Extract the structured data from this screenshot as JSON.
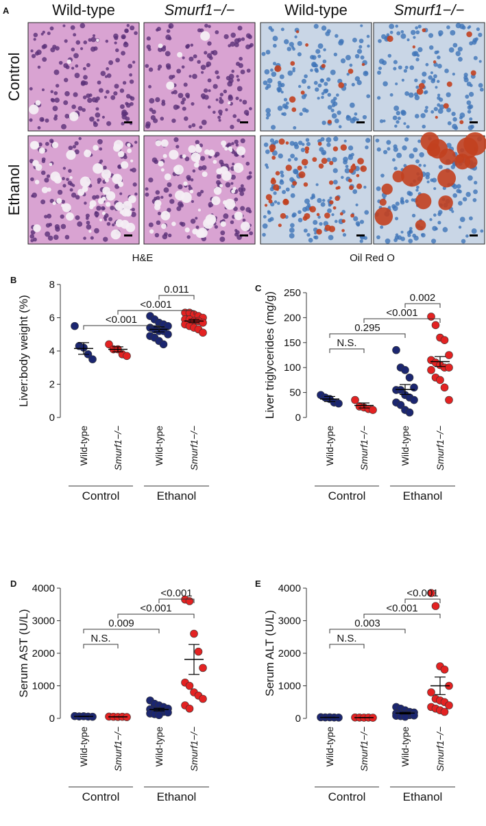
{
  "figure_a": {
    "letter": "A",
    "columns": [
      "Wild-type",
      "Smurf1−/−",
      "Wild-type",
      "Smurf1−/−"
    ],
    "rows": [
      "Control",
      "Ethanol"
    ],
    "stains": [
      "H&E",
      "Oil Red O"
    ]
  },
  "chart_data": [
    {
      "type": "scatter",
      "letter": "B",
      "ylabel": "Liver:body weight (%)",
      "categories": [
        "Wild-type",
        "Smurf1−/−",
        "Wild-type",
        "Smurf1−/−"
      ],
      "groups": [
        "Control",
        "Ethanol"
      ],
      "colors": [
        "#1b2670",
        "#e32222",
        "#1b2670",
        "#e32222"
      ],
      "points": [
        [
          5.5,
          4.3,
          4.2,
          3.8,
          3.5
        ],
        [
          4.4,
          4.1,
          4.1,
          3.8,
          3.7
        ],
        [
          6.1,
          5.9,
          5.7,
          5.6,
          5.5,
          5.4,
          5.3,
          5.2,
          5.2,
          5.0,
          4.9,
          4.8,
          4.6,
          4.4
        ],
        [
          6.3,
          6.3,
          6.2,
          6.1,
          6.0,
          5.9,
          5.9,
          5.8,
          5.8,
          5.7,
          5.6,
          5.5,
          5.4,
          5.3,
          5.1
        ]
      ],
      "means": [
        4.15,
        4.1,
        5.3,
        5.8
      ],
      "errors": [
        0.35,
        0.15,
        0.15,
        0.1
      ],
      "ylim": [
        0,
        8
      ],
      "yticks": [
        0,
        2,
        4,
        6,
        8
      ],
      "brackets": [
        {
          "label": "0.011",
          "from": 2,
          "to": 3
        },
        {
          "label": "<0.001",
          "from": 1,
          "to": 3
        },
        {
          "label": "<0.001",
          "from": 0,
          "to": 2
        }
      ]
    },
    {
      "type": "scatter",
      "letter": "C",
      "ylabel": "Liver triglycerides (mg/g)",
      "categories": [
        "Wild-type",
        "Smurf1−/−",
        "Wild-type",
        "Smurf1−/−"
      ],
      "groups": [
        "Control",
        "Ethanol"
      ],
      "colors": [
        "#1b2670",
        "#e32222",
        "#1b2670",
        "#e32222"
      ],
      "points": [
        [
          45,
          40,
          37,
          30,
          28
        ],
        [
          35,
          22,
          20,
          17,
          15
        ],
        [
          135,
          100,
          95,
          80,
          60,
          55,
          55,
          45,
          40,
          35,
          30,
          25,
          15,
          10
        ],
        [
          202,
          185,
          160,
          155,
          125,
          115,
          110,
          105,
          100,
          100,
          95,
          80,
          75,
          60,
          35
        ]
      ],
      "means": [
        37,
        24,
        56,
        112
      ],
      "errors": [
        5,
        5,
        10,
        10
      ],
      "ylim": [
        0,
        250
      ],
      "yticks": [
        0,
        50,
        100,
        150,
        200,
        250
      ],
      "brackets": [
        {
          "label": "0.002",
          "from": 2,
          "to": 3
        },
        {
          "label": "<0.001",
          "from": 1,
          "to": 3
        },
        {
          "label": "0.295",
          "from": 0,
          "to": 2
        },
        {
          "label": "N.S.",
          "from": 0,
          "to": 1
        }
      ]
    },
    {
      "type": "scatter",
      "letter": "D",
      "ylabel": "Serum AST (U/L)",
      "categories": [
        "Wild-type",
        "Smurf1−/−",
        "Wild-type",
        "Smurf1−/−"
      ],
      "groups": [
        "Control",
        "Ethanol"
      ],
      "colors": [
        "#1b2670",
        "#e32222",
        "#1b2670",
        "#e32222"
      ],
      "points": [
        [
          70,
          60,
          65,
          55,
          50
        ],
        [
          55,
          50,
          45,
          50,
          40
        ],
        [
          550,
          450,
          400,
          350,
          300,
          280,
          250,
          220,
          200,
          180,
          150,
          130,
          100
        ],
        [
          3650,
          3600,
          2600,
          2050,
          1550,
          1100,
          1000,
          800,
          700,
          600,
          400,
          300
        ]
      ],
      "means": [
        60,
        48,
        270,
        1810
      ],
      "errors": [
        5,
        5,
        40,
        460
      ],
      "ylim": [
        0,
        4000
      ],
      "yticks": [
        0,
        1000,
        2000,
        3000,
        4000
      ],
      "brackets": [
        {
          "label": "<0.001",
          "from": 2,
          "to": 3
        },
        {
          "label": "<0.001",
          "from": 1,
          "to": 3
        },
        {
          "label": "0.009",
          "from": 0,
          "to": 2
        },
        {
          "label": "N.S.",
          "from": 0,
          "to": 1
        }
      ]
    },
    {
      "type": "scatter",
      "letter": "E",
      "ylabel": "Serum ALT (U/L)",
      "categories": [
        "Wild-type",
        "Smurf1−/−",
        "Wild-type",
        "Smurf1−/−"
      ],
      "groups": [
        "Control",
        "Ethanol"
      ],
      "colors": [
        "#1b2670",
        "#e32222",
        "#1b2670",
        "#e32222"
      ],
      "points": [
        [
          35,
          30,
          32,
          28,
          25
        ],
        [
          28,
          25,
          22,
          25,
          20
        ],
        [
          350,
          300,
          250,
          200,
          180,
          150,
          130,
          120,
          100,
          90,
          80,
          70,
          50
        ],
        [
          3850,
          3450,
          1600,
          1500,
          1000,
          800,
          600,
          550,
          500,
          400,
          350,
          300,
          250,
          200
        ]
      ],
      "means": [
        30,
        24,
        160,
        1000
      ],
      "errors": [
        3,
        3,
        25,
        270
      ],
      "ylim": [
        0,
        4000
      ],
      "yticks": [
        0,
        1000,
        2000,
        3000,
        4000
      ],
      "brackets": [
        {
          "label": "<0.001",
          "from": 2,
          "to": 3
        },
        {
          "label": "<0.001",
          "from": 1,
          "to": 3
        },
        {
          "label": "0.003",
          "from": 0,
          "to": 2
        },
        {
          "label": "N.S.",
          "from": 0,
          "to": 1
        }
      ]
    }
  ]
}
